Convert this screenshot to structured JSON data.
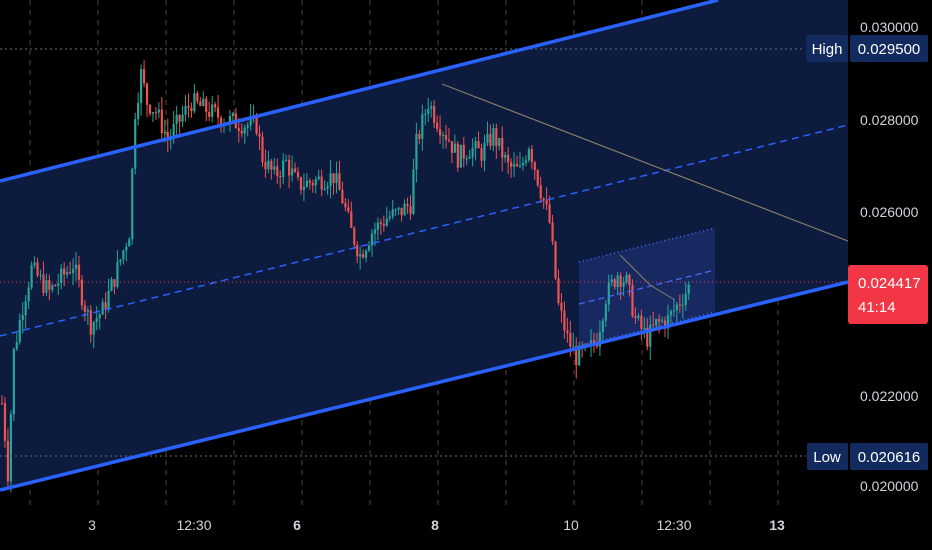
{
  "colors": {
    "background": "#000000",
    "up": "#26a69a",
    "down": "#ef5350",
    "channel": "#2962ff",
    "channel_fill": "#0d1b3e",
    "trendline": "#8a7f66",
    "grid_v": "#5a4526",
    "price_line": "#f23645",
    "label_bg": "#132a5e",
    "axis_text": "#d1d4dc"
  },
  "chart_data": {
    "type": "candlestick",
    "x_tick_labels": [
      {
        "text": "3",
        "bold": false
      },
      {
        "text": "12:30",
        "bold": false
      },
      {
        "text": "6",
        "bold": true
      },
      {
        "text": "8",
        "bold": true
      },
      {
        "text": "10",
        "bold": false
      },
      {
        "text": "12:30",
        "bold": false
      },
      {
        "text": "13",
        "bold": true
      }
    ],
    "y_tick_labels": [
      "0.030000",
      "0.028000",
      "0.026000",
      "0.022000",
      "0.020000"
    ],
    "ylim": [
      0.0197,
      0.0306
    ],
    "markers": {
      "high": {
        "label": "High",
        "value": "0.029500"
      },
      "low": {
        "label": "Low",
        "value": "0.020616"
      }
    },
    "last_price": {
      "value": "0.024417",
      "countdown": "41:14"
    },
    "anchors": [
      [
        0,
        0.0219
      ],
      [
        1,
        0.0212
      ],
      [
        2,
        0.0204
      ],
      [
        4,
        0.023
      ],
      [
        7,
        0.024
      ],
      [
        10,
        0.0248
      ],
      [
        16,
        0.0243
      ],
      [
        24,
        0.0249
      ],
      [
        28,
        0.024
      ],
      [
        30,
        0.0236
      ],
      [
        34,
        0.0239
      ],
      [
        38,
        0.0246
      ],
      [
        41,
        0.0252
      ],
      [
        43,
        0.0256
      ],
      [
        45,
        0.0282
      ],
      [
        47,
        0.029
      ],
      [
        49,
        0.0284
      ],
      [
        52,
        0.0282
      ],
      [
        56,
        0.0276
      ],
      [
        60,
        0.028
      ],
      [
        64,
        0.0284
      ],
      [
        70,
        0.0282
      ],
      [
        76,
        0.028
      ],
      [
        83,
        0.0279
      ],
      [
        86,
        0.0279
      ],
      [
        88,
        0.0272
      ],
      [
        92,
        0.0268
      ],
      [
        96,
        0.0271
      ],
      [
        100,
        0.0266
      ],
      [
        106,
        0.0267
      ],
      [
        112,
        0.0268
      ],
      [
        115,
        0.0263
      ],
      [
        118,
        0.0256
      ],
      [
        121,
        0.0251
      ],
      [
        125,
        0.0256
      ],
      [
        130,
        0.0259
      ],
      [
        134,
        0.026
      ],
      [
        138,
        0.0262
      ],
      [
        140,
        0.0275
      ],
      [
        144,
        0.0284
      ],
      [
        147,
        0.028
      ],
      [
        151,
        0.0276
      ],
      [
        154,
        0.0272
      ],
      [
        158,
        0.0274
      ],
      [
        162,
        0.0273
      ],
      [
        166,
        0.0277
      ],
      [
        171,
        0.027
      ],
      [
        175,
        0.0269
      ],
      [
        178,
        0.0275
      ],
      [
        182,
        0.0265
      ],
      [
        185,
        0.0258
      ],
      [
        188,
        0.024
      ],
      [
        191,
        0.0233
      ],
      [
        194,
        0.0229
      ],
      [
        198,
        0.023
      ],
      [
        201,
        0.0233
      ],
      [
        204,
        0.0242
      ],
      [
        208,
        0.0247
      ],
      [
        211,
        0.0245
      ],
      [
        214,
        0.0237
      ],
      [
        218,
        0.0233
      ],
      [
        221,
        0.0236
      ],
      [
        225,
        0.0237
      ],
      [
        229,
        0.0241
      ],
      [
        232,
        0.0244
      ]
    ]
  }
}
